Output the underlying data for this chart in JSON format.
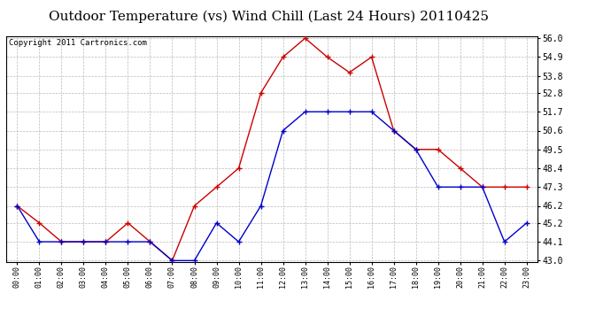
{
  "title": "Outdoor Temperature (vs) Wind Chill (Last 24 Hours) 20110425",
  "copyright_text": "Copyright 2011 Cartronics.com",
  "x_labels": [
    "00:00",
    "01:00",
    "02:00",
    "03:00",
    "04:00",
    "05:00",
    "06:00",
    "07:00",
    "08:00",
    "09:00",
    "10:00",
    "11:00",
    "12:00",
    "13:00",
    "14:00",
    "15:00",
    "16:00",
    "17:00",
    "18:00",
    "19:00",
    "20:00",
    "21:00",
    "22:00",
    "23:00"
  ],
  "temp_red": [
    46.2,
    45.2,
    44.1,
    44.1,
    44.1,
    45.2,
    44.1,
    43.0,
    46.2,
    47.3,
    48.4,
    52.8,
    54.9,
    56.0,
    54.9,
    54.0,
    54.9,
    50.6,
    49.5,
    49.5,
    48.4,
    47.3,
    47.3,
    47.3
  ],
  "wind_chill_blue": [
    46.2,
    44.1,
    44.1,
    44.1,
    44.1,
    44.1,
    44.1,
    43.0,
    43.0,
    45.2,
    44.1,
    46.2,
    50.6,
    51.7,
    51.7,
    51.7,
    51.7,
    50.6,
    49.5,
    47.3,
    47.3,
    47.3,
    44.1,
    45.2
  ],
  "y_ticks": [
    43.0,
    44.1,
    45.2,
    46.2,
    47.3,
    48.4,
    49.5,
    50.6,
    51.7,
    52.8,
    53.8,
    54.9,
    56.0
  ],
  "y_min": 43.0,
  "y_max": 56.0,
  "red_color": "#cc0000",
  "blue_color": "#0000cc",
  "bg_color": "#ffffff",
  "plot_bg_color": "#ffffff",
  "grid_color": "#bbbbbb",
  "title_fontsize": 11,
  "copyright_fontsize": 6.5
}
